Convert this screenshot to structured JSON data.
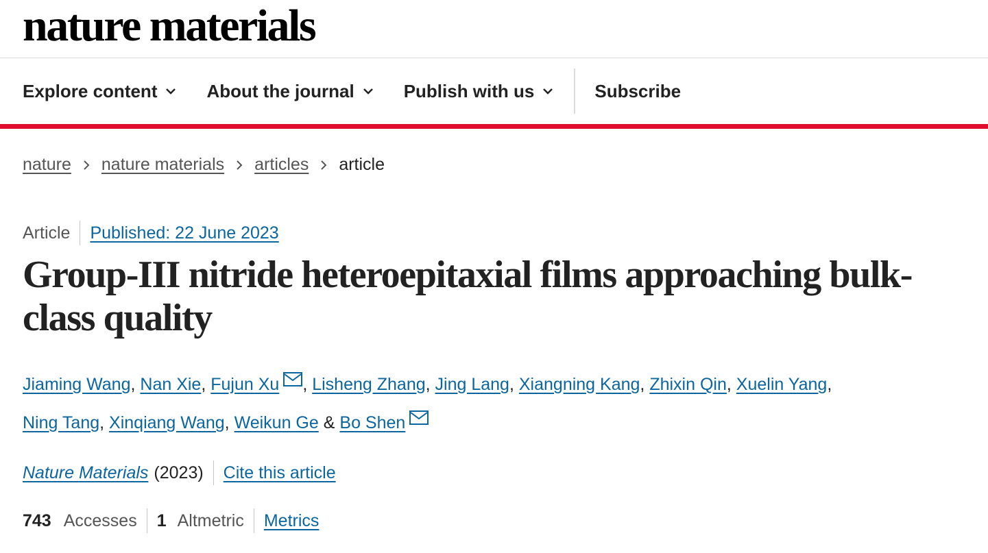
{
  "header": {
    "logo": "nature materials"
  },
  "nav": {
    "items": [
      "Explore content",
      "About the journal",
      "Publish with us"
    ],
    "subscribe": "Subscribe"
  },
  "breadcrumbs": [
    "nature",
    "nature materials",
    "articles",
    "article"
  ],
  "article": {
    "type": "Article",
    "published": "Published: 22 June 2023",
    "title": "Group-III nitride heteroepitaxial films approaching bulk-class quality",
    "authors": [
      "Jiaming Wang",
      "Nan Xie",
      "Fujun Xu",
      "Lisheng Zhang",
      "Jing Lang",
      "Xiangning Kang",
      "Zhixin Qin",
      "Xuelin Yang",
      "Ning Tang",
      "Xinqiang Wang",
      "Weikun Ge",
      "Bo Shen"
    ],
    "author_separator": ",",
    "last_separator": "&",
    "journal": "Nature Materials",
    "year": "(2023)",
    "cite": "Cite this article",
    "metrics": {
      "accesses_count": 743,
      "accesses_label": "Accesses",
      "altmetric_count": 1,
      "altmetric_label": "Altmetric",
      "link": "Metrics"
    }
  }
}
